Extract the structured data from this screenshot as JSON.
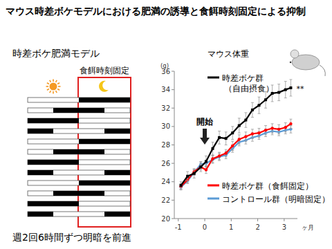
{
  "page": {
    "title": "マウス時差ボケモデルにおける肥満の誘導と食餌時刻固定による抑制",
    "diagram": {
      "title": "時差ボケ肥満モデル",
      "box_label": "食餌時刻固定",
      "caption": "週2回6時間ずつ明暗を前進",
      "day_hours": [
        0,
        24
      ],
      "fixed_feeding": [
        12,
        24
      ],
      "rows": [
        {
          "dark": [
            12,
            24
          ]
        },
        {
          "dark": [
            6,
            18
          ]
        },
        {
          "dark": [
            0,
            12
          ]
        },
        {
          "dark": [
            18,
            30
          ]
        },
        {
          "dark": [
            12,
            24
          ]
        },
        {
          "dark": [
            6,
            18
          ]
        },
        {
          "dark": [
            0,
            12
          ]
        },
        {
          "dark": [
            18,
            30
          ]
        },
        {
          "dark": [
            12,
            24
          ]
        },
        {
          "dark": [
            6,
            18
          ]
        },
        {
          "dark": [
            0,
            12
          ]
        },
        {
          "dark": [
            18,
            30
          ]
        }
      ]
    }
  },
  "chart_data": {
    "type": "line",
    "title": "マウス体重",
    "y_label": "(g)",
    "x_label": "ヶ月",
    "x": [
      -0.9,
      -0.65,
      -0.4,
      -0.15,
      0.05,
      0.3,
      0.55,
      0.8,
      1.05,
      1.3,
      1.55,
      1.8,
      2.05,
      2.3,
      2.55,
      2.8,
      3.05,
      3.25
    ],
    "xlim": [
      -1.15,
      3.5
    ],
    "xticks": [
      -1,
      0,
      1,
      2,
      3
    ],
    "ylim": [
      20,
      36
    ],
    "yticks": [
      20,
      22,
      24,
      26,
      28,
      30,
      32,
      34,
      36
    ],
    "grid": false,
    "series": [
      {
        "name": "時差ボケ群（自由摂食）",
        "color": "#000000",
        "marker": "square",
        "values": [
          23.6,
          24.6,
          24.9,
          25.6,
          26.2,
          27.6,
          28.8,
          28.7,
          29.3,
          30.1,
          30.7,
          31.8,
          32.3,
          32.9,
          33.6,
          33.7,
          34.0,
          34.2
        ],
        "errors": [
          0.4,
          0.5,
          0.5,
          0.5,
          0.6,
          0.7,
          0.7,
          0.7,
          0.7,
          0.8,
          0.8,
          0.8,
          0.9,
          0.9,
          0.9,
          0.9,
          0.9,
          0.9
        ]
      },
      {
        "name": "時差ボケ群（食餌固定）",
        "color": "#ff0000",
        "marker": "circle",
        "values": [
          23.5,
          24.2,
          25.1,
          25.6,
          25.3,
          26.5,
          26.8,
          27.1,
          27.9,
          28.6,
          28.9,
          29.2,
          29.3,
          29.6,
          29.8,
          29.7,
          29.9,
          30.3
        ],
        "errors": [
          0.3,
          0.3,
          0.3,
          0.3,
          0.4,
          0.4,
          0.4,
          0.4,
          0.5,
          0.5,
          0.5,
          0.5,
          0.5,
          0.5,
          0.5,
          0.5,
          0.5,
          0.5
        ]
      },
      {
        "name": "コントロール群（明暗固定）",
        "color": "#5b9bd5",
        "marker": "diamond",
        "values": [
          23.4,
          24.1,
          25.0,
          25.9,
          26.0,
          26.4,
          26.7,
          26.9,
          27.6,
          28.3,
          28.5,
          28.8,
          29.0,
          29.3,
          29.5,
          29.4,
          29.6,
          29.7
        ],
        "errors": [
          0.3,
          0.3,
          0.3,
          0.3,
          0.3,
          0.4,
          0.4,
          0.4,
          0.4,
          0.4,
          0.4,
          0.4,
          0.4,
          0.4,
          0.4,
          0.4,
          0.4,
          0.4
        ]
      }
    ],
    "annotations": [
      {
        "text": "開始",
        "x": 0
      },
      {
        "text": "**",
        "series": 0
      }
    ]
  }
}
